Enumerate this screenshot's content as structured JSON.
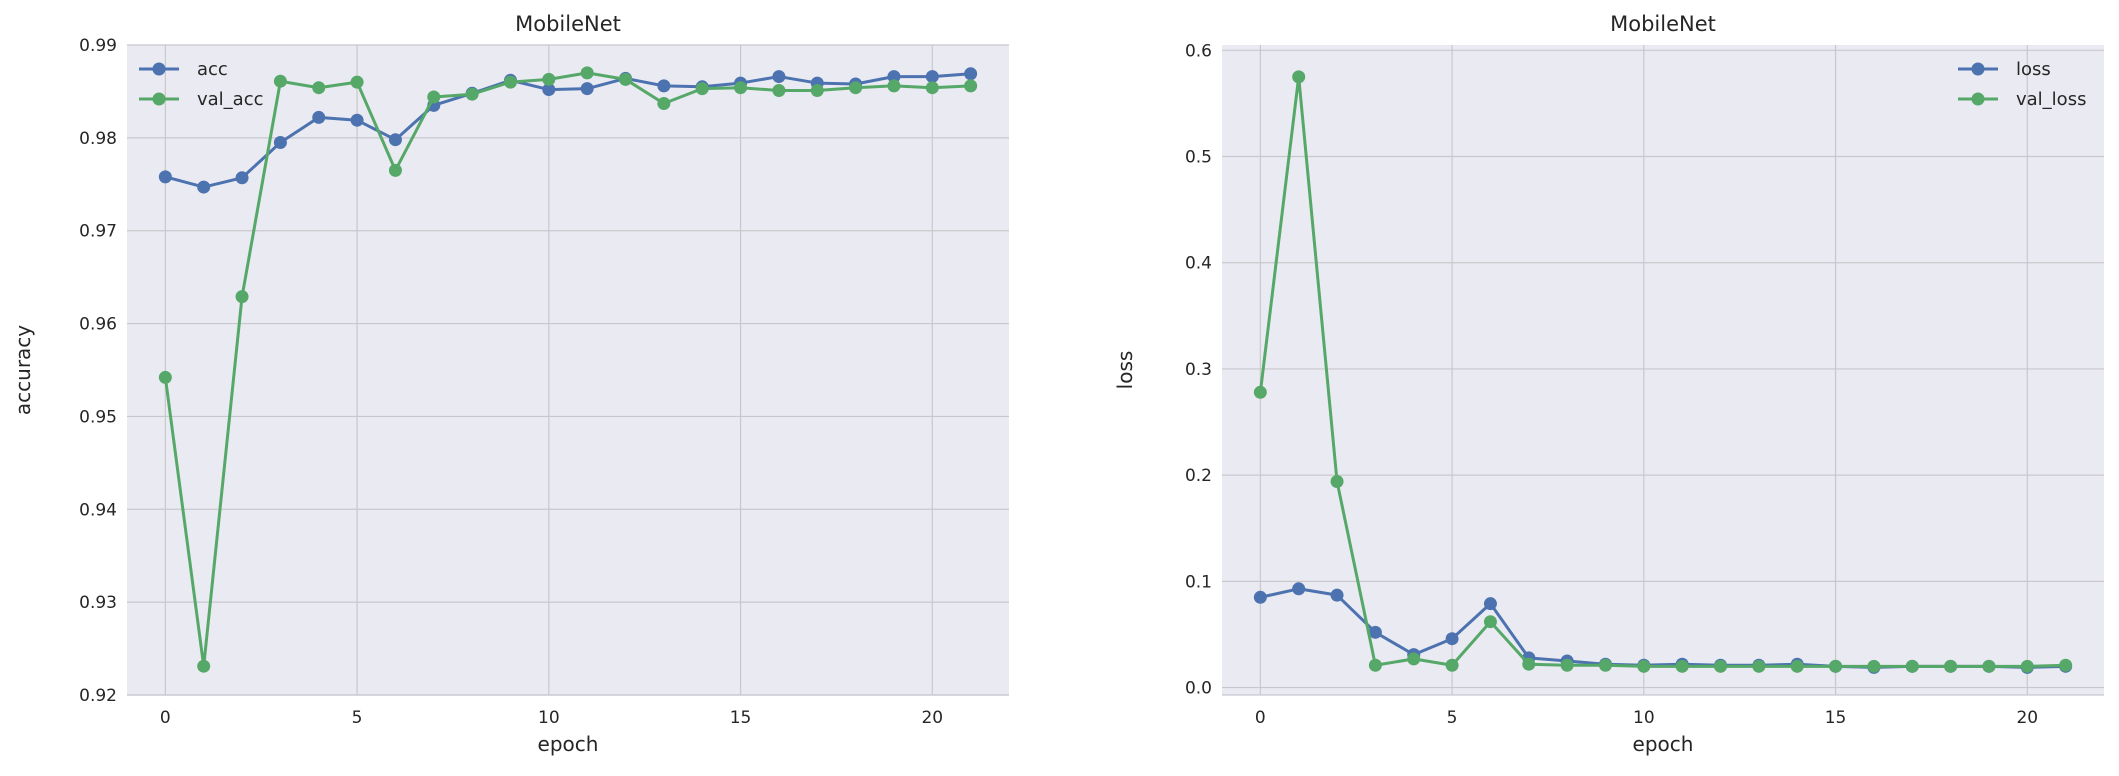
{
  "chart_data": [
    {
      "type": "line",
      "title": "MobileNet",
      "xlabel": "epoch",
      "ylabel": "accuracy",
      "xlim": [
        -1,
        22
      ],
      "ylim": [
        0.92,
        0.99
      ],
      "xticks": [
        0,
        5,
        10,
        15,
        20
      ],
      "xtick_labels": [
        "0",
        "5",
        "10",
        "15",
        "20"
      ],
      "yticks": [
        0.92,
        0.93,
        0.94,
        0.95,
        0.96,
        0.97,
        0.98,
        0.99
      ],
      "ytick_labels": [
        "0.92",
        "0.93",
        "0.94",
        "0.95",
        "0.96",
        "0.97",
        "0.98",
        "0.99"
      ],
      "grid": true,
      "legend": "top-left",
      "x": [
        0,
        1,
        2,
        3,
        4,
        5,
        6,
        7,
        8,
        9,
        10,
        11,
        12,
        13,
        14,
        15,
        16,
        17,
        18,
        19,
        20,
        21
      ],
      "series": [
        {
          "name": "acc",
          "color": "#4c72b0",
          "values": [
            0.9758,
            0.9747,
            0.9757,
            0.9795,
            0.9822,
            0.9819,
            0.9798,
            0.9835,
            0.9848,
            0.9862,
            0.9852,
            0.9853,
            0.9864,
            0.9856,
            0.9855,
            0.9859,
            0.9866,
            0.9859,
            0.9858,
            0.9866,
            0.9866,
            0.9869
          ]
        },
        {
          "name": "val_acc",
          "color": "#55a868",
          "values": [
            0.9542,
            0.9231,
            0.9629,
            0.9861,
            0.9854,
            0.986,
            0.9765,
            0.9844,
            0.9847,
            0.986,
            0.9863,
            0.987,
            0.9863,
            0.9837,
            0.9853,
            0.9854,
            0.9851,
            0.9851,
            0.9854,
            0.9856,
            0.9854,
            0.9856
          ]
        }
      ]
    },
    {
      "type": "line",
      "title": "MobileNet",
      "xlabel": "epoch",
      "ylabel": "loss",
      "xlim": [
        -1,
        22
      ],
      "ylim": [
        -0.007,
        0.605
      ],
      "xticks": [
        0,
        5,
        10,
        15,
        20
      ],
      "xtick_labels": [
        "0",
        "5",
        "10",
        "15",
        "20"
      ],
      "yticks": [
        0.0,
        0.1,
        0.2,
        0.3,
        0.4,
        0.5,
        0.6
      ],
      "ytick_labels": [
        "0.0",
        "0.1",
        "0.2",
        "0.3",
        "0.4",
        "0.5",
        "0.6"
      ],
      "grid": true,
      "legend": "top-right",
      "x": [
        0,
        1,
        2,
        3,
        4,
        5,
        6,
        7,
        8,
        9,
        10,
        11,
        12,
        13,
        14,
        15,
        16,
        17,
        18,
        19,
        20,
        21
      ],
      "series": [
        {
          "name": "loss",
          "color": "#4c72b0",
          "values": [
            0.085,
            0.093,
            0.087,
            0.052,
            0.031,
            0.046,
            0.079,
            0.028,
            0.025,
            0.022,
            0.021,
            0.022,
            0.021,
            0.021,
            0.022,
            0.02,
            0.019,
            0.02,
            0.02,
            0.02,
            0.019,
            0.02
          ]
        },
        {
          "name": "val_loss",
          "color": "#55a868",
          "values": [
            0.278,
            0.575,
            0.194,
            0.021,
            0.027,
            0.021,
            0.062,
            0.022,
            0.021,
            0.021,
            0.02,
            0.02,
            0.02,
            0.02,
            0.02,
            0.02,
            0.02,
            0.02,
            0.02,
            0.02,
            0.02,
            0.021
          ]
        }
      ]
    }
  ]
}
